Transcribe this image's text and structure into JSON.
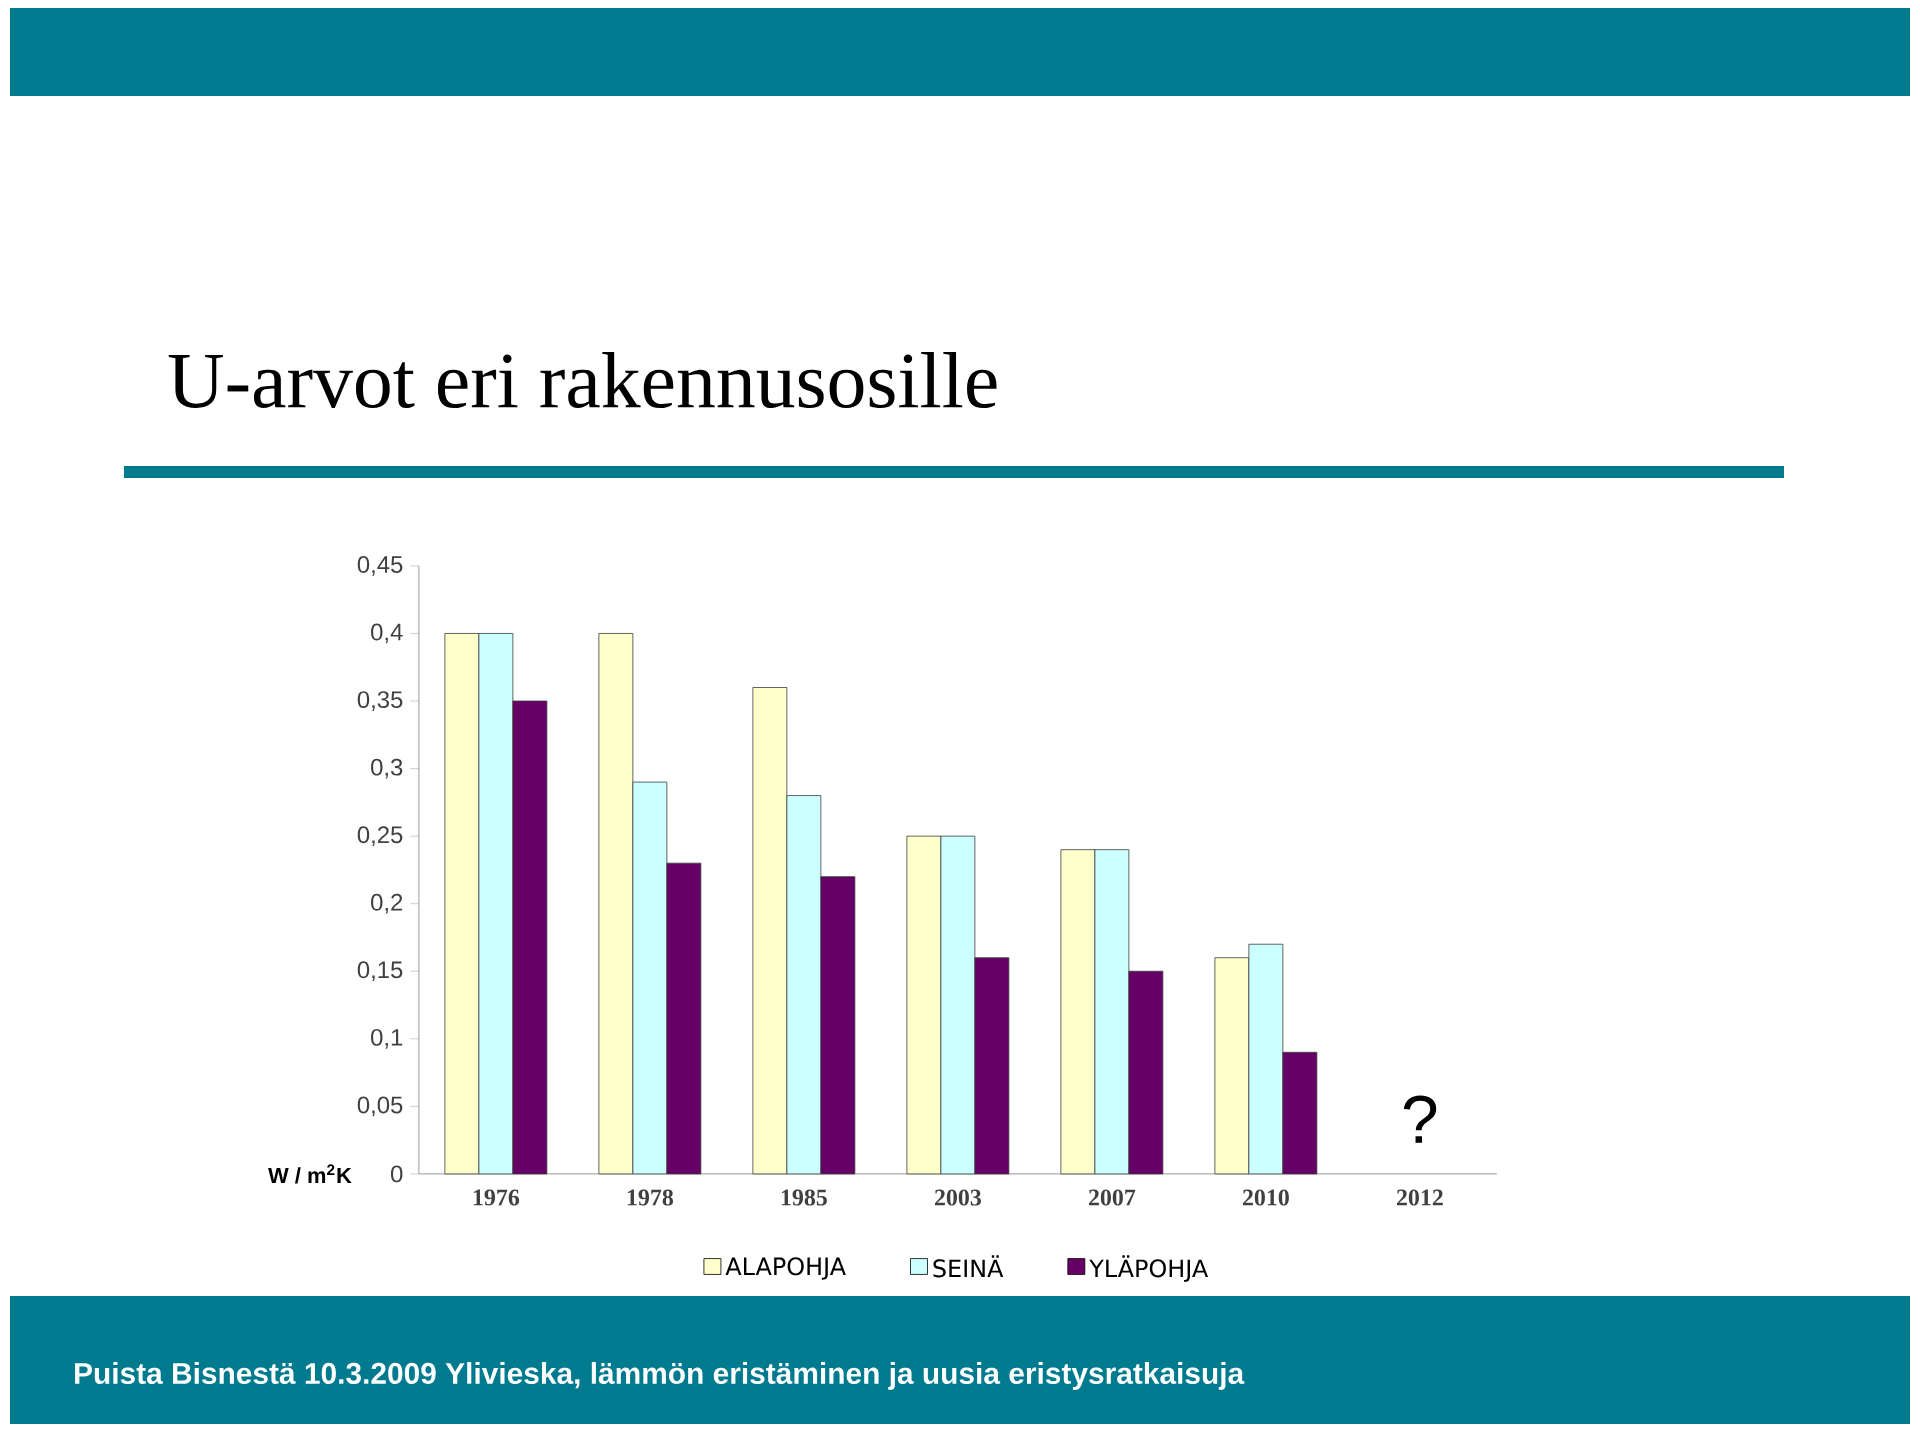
{
  "chart_data": {
    "type": "bar",
    "title": "U-arvot eri rakennusosille",
    "ylabel": "W / m$^{2}$K",
    "categories": [
      "1976",
      "1978",
      "1985",
      "2003",
      "2007",
      "2010",
      "2012"
    ],
    "series": [
      {
        "name": "ALAPOHJA",
        "color": "#ffffcc",
        "values": [
          0.4,
          0.4,
          0.36,
          0.25,
          0.24,
          0.16,
          null
        ]
      },
      {
        "name": "SEINÄ",
        "color": "#ccffff",
        "values": [
          0.4,
          0.29,
          0.28,
          0.25,
          0.24,
          0.17,
          null
        ]
      },
      {
        "name": "YLÄPOHJA",
        "color": "#660066",
        "values": [
          0.35,
          0.23,
          0.22,
          0.16,
          0.15,
          0.09,
          null
        ]
      }
    ],
    "ylim": [
      0,
      0.45
    ],
    "yticks": [
      0,
      {
        "value": 0.05,
        "label": "0,05"
      },
      {
        "value": 0.1,
        "label": "0,1"
      },
      {
        "value": 0.15,
        "label": "0,15"
      },
      {
        "value": 0.2,
        "label": "0,2"
      },
      {
        "value": 0.25,
        "label": "0,25"
      },
      {
        "value": 0.3,
        "label": "0,3"
      },
      {
        "value": 0.35,
        "label": "0,35"
      },
      {
        "value": 0.4,
        "label": "0,4"
      },
      {
        "value": 0.45,
        "label": "0,45"
      }
    ],
    "grid": false,
    "legend": "bottom",
    "annotations": [
      "?",
      "Puista Bisnestä 10.3.2009 Ylivieska,  lämmön eristäminen ja uusia eristysratkaisuja"
    ]
  }
}
